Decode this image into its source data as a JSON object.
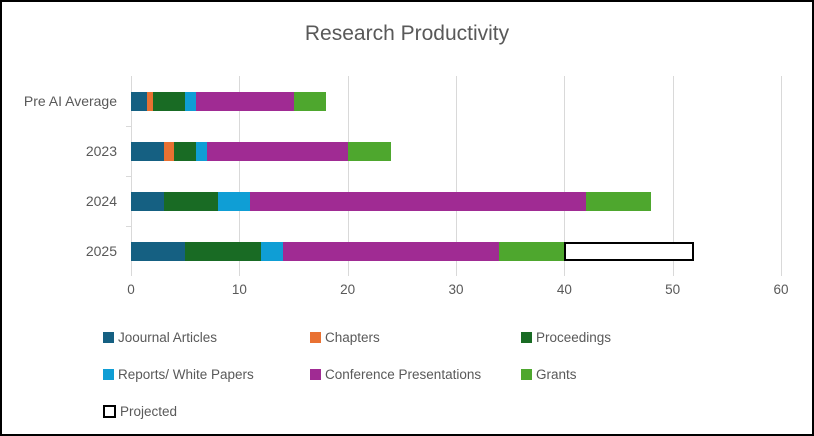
{
  "styles": {
    "background": "#ffffff",
    "frame_border": "#000000",
    "title_color": "#595959",
    "axis_text_color": "#595959",
    "gridline_color": "#D9D9D9"
  },
  "chart_data": {
    "type": "bar",
    "orientation": "horizontal",
    "stacked": true,
    "title": "Research Productivity",
    "categories": [
      "Pre AI Average",
      "2023",
      "2024",
      "2025"
    ],
    "series": [
      {
        "name": "Joournal Articles",
        "color": "#156082",
        "values": [
          1.5,
          3,
          3,
          5
        ]
      },
      {
        "name": "Chapters",
        "color": "#E97132",
        "values": [
          0.5,
          1,
          0,
          0
        ]
      },
      {
        "name": "Proceedings",
        "color": "#196B24",
        "values": [
          3,
          2,
          5,
          7
        ]
      },
      {
        "name": "Reports/ White Papers",
        "color": "#0F9ED5",
        "values": [
          1,
          1,
          3,
          2
        ]
      },
      {
        "name": "Conference Presentations",
        "color": "#A02B93",
        "values": [
          9,
          13,
          31,
          20
        ]
      },
      {
        "name": "Grants",
        "color": "#4EA72E",
        "values": [
          3,
          4,
          6,
          6
        ]
      },
      {
        "name": "Projected",
        "color": "#FFFFFF",
        "border_color": "#000000",
        "values": [
          0,
          0,
          0,
          12
        ]
      }
    ],
    "category_totals": [
      18,
      24,
      48,
      52
    ],
    "x_axis": {
      "min": 0,
      "max": 60,
      "tick_interval": 10,
      "tick_labels": [
        "0",
        "10",
        "20",
        "30",
        "40",
        "50",
        "60"
      ]
    },
    "grid": true,
    "legend_position": "bottom",
    "legend_rows": [
      3,
      3,
      1
    ]
  }
}
